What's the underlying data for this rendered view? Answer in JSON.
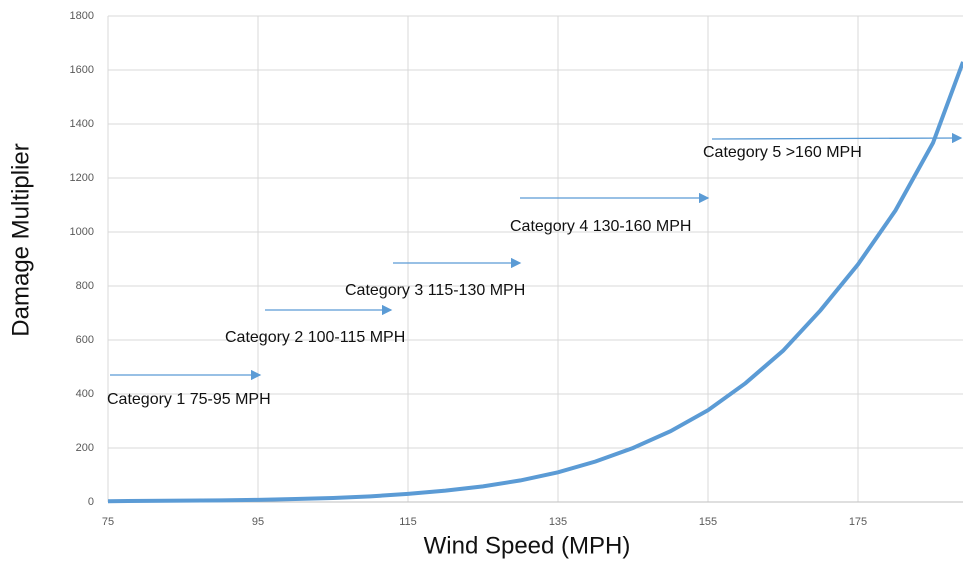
{
  "chart_data": {
    "type": "line",
    "x_label": "Wind Speed (MPH)",
    "y_label": "Damage Multiplier",
    "x": [
      75,
      80,
      85,
      90,
      95,
      100,
      105,
      110,
      115,
      120,
      125,
      130,
      135,
      140,
      145,
      150,
      155,
      160,
      165,
      170,
      175,
      180,
      185,
      189
    ],
    "values": [
      3,
      4,
      5,
      6,
      8,
      11,
      15,
      21,
      30,
      42,
      58,
      80,
      110,
      150,
      200,
      262,
      340,
      440,
      560,
      710,
      880,
      1080,
      1330,
      1630
    ],
    "color": "#5b9bd5",
    "xlim": [
      75,
      189
    ],
    "xticks": [
      75,
      95,
      115,
      135,
      155,
      175
    ],
    "ylim": [
      0,
      1800
    ],
    "yticks": [
      0,
      200,
      400,
      600,
      800,
      1000,
      1200,
      1400,
      1600,
      1800
    ],
    "grid": true,
    "annotations": [
      "Category 1 75-95 MPH",
      "Category 2 100-115 MPH",
      "Category 3 115-130 MPH",
      "Category 4 130-160 MPH",
      "Category 5 >160 MPH"
    ]
  }
}
